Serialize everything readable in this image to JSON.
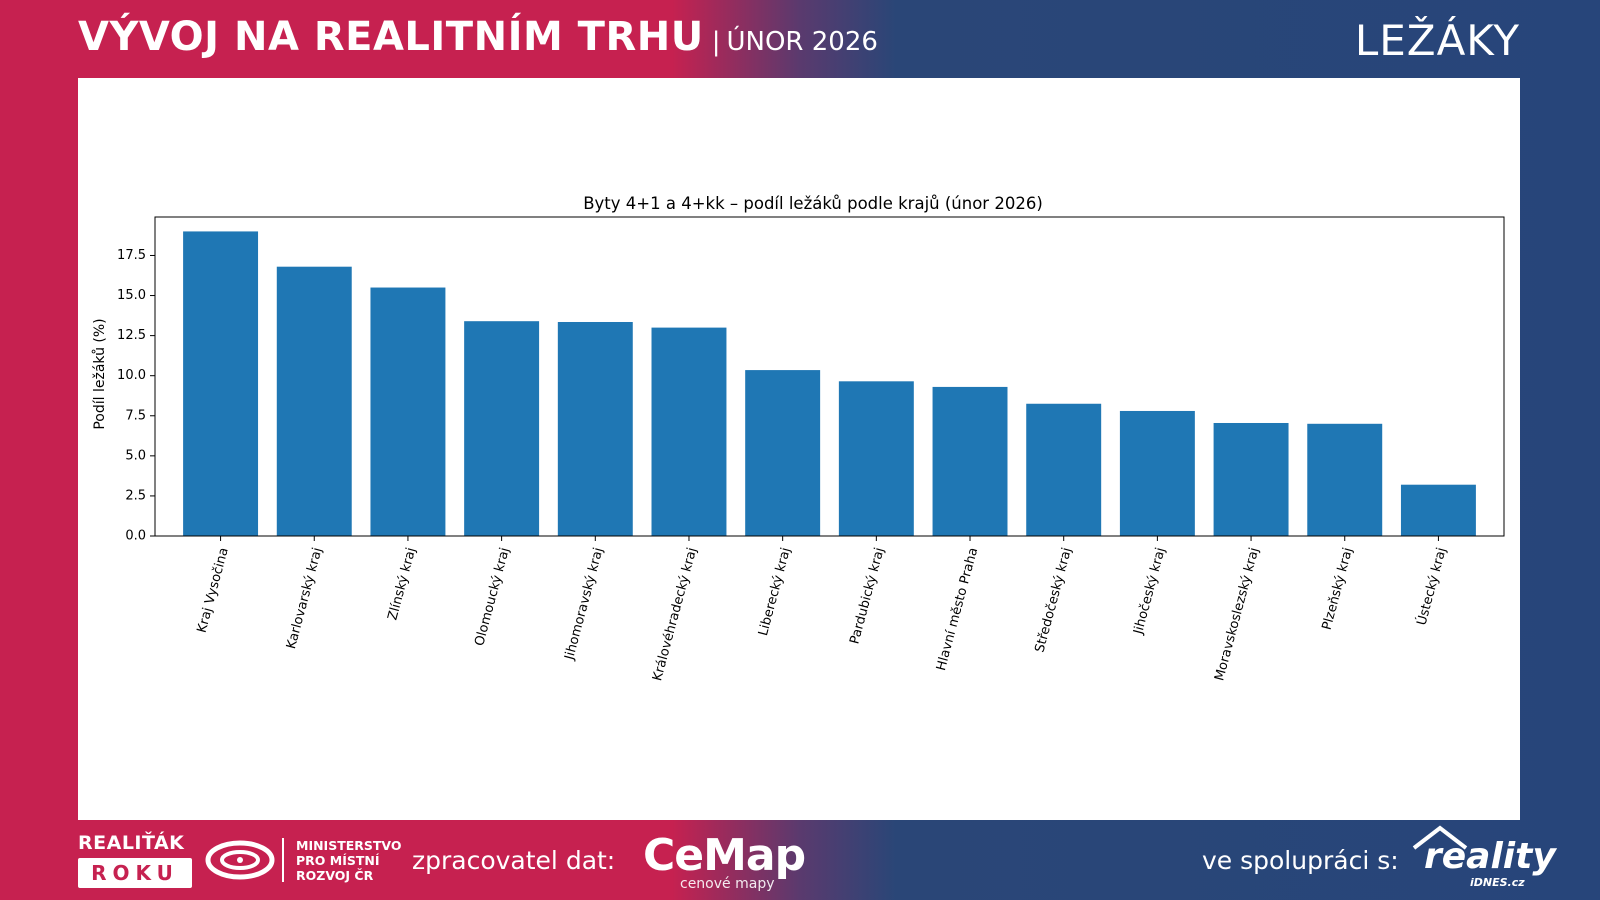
{
  "header": {
    "title": "VÝVOJ NA REALITNÍM TRHU",
    "separator": "|",
    "date": "ÚNOR 2026",
    "section": "LEŽÁKY"
  },
  "chart_data": {
    "type": "bar",
    "title": "Byty 4+1 a 4+kk – podíl ležáků podle krajů (únor 2026)",
    "xlabel": "",
    "ylabel": "Podíl ležáků (%)",
    "ylim": [
      0,
      19.9
    ],
    "yticks": [
      0.0,
      2.5,
      5.0,
      7.5,
      10.0,
      12.5,
      15.0,
      17.5
    ],
    "ytick_labels": [
      "0.0",
      "2.5",
      "5.0",
      "7.5",
      "10.0",
      "12.5",
      "15.0",
      "17.5"
    ],
    "categories": [
      "Kraj Vysočina",
      "Karlovarský kraj",
      "Zlínský kraj",
      "Olomoucký kraj",
      "Jihomoravský kraj",
      "Královéhradecký kraj",
      "Liberecký kraj",
      "Pardubický kraj",
      "Hlavní město Praha",
      "Středočeský kraj",
      "Jihočeský kraj",
      "Moravskoslezský kraj",
      "Plzeňský kraj",
      "Ústecký kraj"
    ],
    "values": [
      19.0,
      16.8,
      15.5,
      13.4,
      13.35,
      13.0,
      10.35,
      9.65,
      9.3,
      8.25,
      7.8,
      7.05,
      7.0,
      3.2
    ],
    "bar_color": "#1f77b4",
    "grid": false
  },
  "footer": {
    "award_top": "REALIŤÁK",
    "award_box": "ROKU",
    "ministry_lines": [
      "MINISTERSTVO",
      "PRO MÍSTNÍ",
      "ROZVOJ ČR"
    ],
    "processor_label": "zpracovatel dat:",
    "processor_name": "CeMap",
    "processor_sub": "cenové mapy",
    "coop_label": "ve spolupráci s:",
    "partner_name": "reality",
    "partner_sub": "iDNES.cz"
  },
  "icons": [
    "ministry-logo-icon",
    "cemap-pin-icon",
    "reality-house-icon"
  ],
  "colors": {
    "brand_red": "#c62150",
    "brand_blue": "#27457a",
    "bar": "#1f77b4"
  }
}
